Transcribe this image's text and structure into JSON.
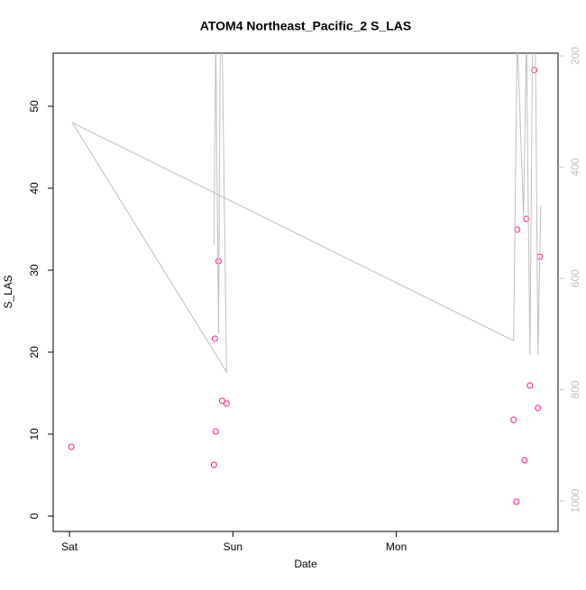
{
  "chart_data": {
    "type": "scatter",
    "title": "ATOM4 Northeast_Pacific_2 S_LAS",
    "xlabel": "Date",
    "ylabel": "S_LAS",
    "xlim": [
      -0.1,
      2.99
    ],
    "xticks": [
      {
        "value": 0,
        "label": "Sat"
      },
      {
        "value": 1,
        "label": "Sun"
      },
      {
        "value": 2,
        "label": "Mon"
      }
    ],
    "ylim": [
      -1.87,
      56.48
    ],
    "yticks": [
      0,
      10,
      20,
      30,
      40,
      50
    ],
    "y2lim": [
      1055,
      195
    ],
    "y2ticks": [
      200,
      400,
      600,
      800,
      1000
    ],
    "series": [
      {
        "type": "scatter",
        "color": "#ff1493",
        "x": [
          0.011,
          0.884,
          0.895,
          0.89,
          0.912,
          0.934,
          0.961,
          2.718,
          2.735,
          2.74,
          2.785,
          2.796,
          2.818,
          2.845,
          2.867,
          2.878
        ],
        "values": [
          8.46,
          6.26,
          10.33,
          21.65,
          31.1,
          14.07,
          13.74,
          11.76,
          1.76,
          34.95,
          6.81,
          36.26,
          15.93,
          54.4,
          13.19,
          31.65
        ]
      },
      {
        "type": "line",
        "axis": "y2",
        "color": "#bebebe",
        "x": [
          0.884,
          0.895,
          0.912,
          0.923,
          0.934,
          0.961,
          0.017,
          2.718,
          2.74,
          2.779,
          2.796,
          2.818,
          2.834,
          2.851,
          2.867,
          2.884
        ],
        "values": [
          540,
          164,
          699,
          164,
          164,
          768,
          320,
          712,
          164,
          488,
          164,
          738,
          164,
          164,
          738,
          469
        ]
      }
    ]
  }
}
